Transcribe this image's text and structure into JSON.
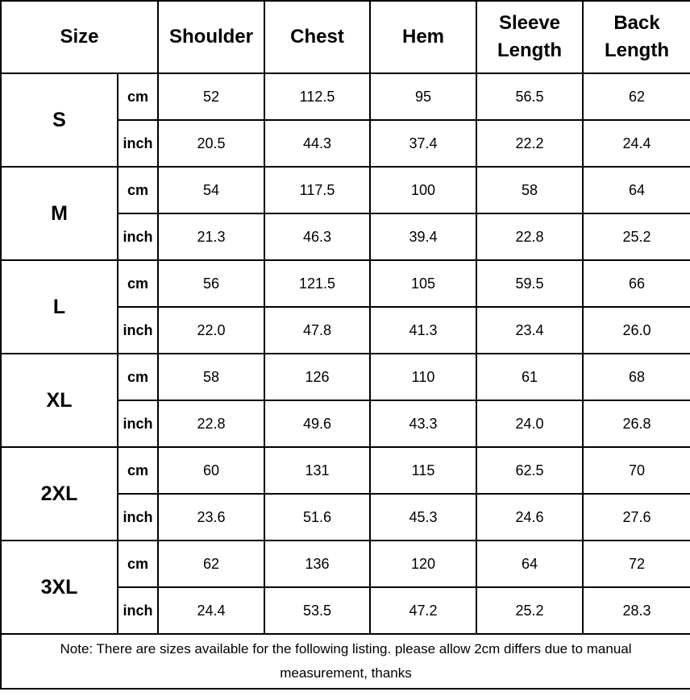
{
  "table": {
    "headers": {
      "size": "Size",
      "columns": [
        "Shoulder",
        "Chest",
        "Hem",
        "Sleeve Length",
        "Back Length"
      ]
    },
    "units": [
      "cm",
      "inch"
    ],
    "rows": [
      {
        "size": "S",
        "cm": [
          "52",
          "112.5",
          "95",
          "56.5",
          "62"
        ],
        "inch": [
          "20.5",
          "44.3",
          "37.4",
          "22.2",
          "24.4"
        ]
      },
      {
        "size": "M",
        "cm": [
          "54",
          "117.5",
          "100",
          "58",
          "64"
        ],
        "inch": [
          "21.3",
          "46.3",
          "39.4",
          "22.8",
          "25.2"
        ]
      },
      {
        "size": "L",
        "cm": [
          "56",
          "121.5",
          "105",
          "59.5",
          "66"
        ],
        "inch": [
          "22.0",
          "47.8",
          "41.3",
          "23.4",
          "26.0"
        ]
      },
      {
        "size": "XL",
        "cm": [
          "58",
          "126",
          "110",
          "61",
          "68"
        ],
        "inch": [
          "22.8",
          "49.6",
          "43.3",
          "24.0",
          "26.8"
        ]
      },
      {
        "size": "2XL",
        "cm": [
          "60",
          "131",
          "115",
          "62.5",
          "70"
        ],
        "inch": [
          "23.6",
          "51.6",
          "45.3",
          "24.6",
          "27.6"
        ]
      },
      {
        "size": "3XL",
        "cm": [
          "62",
          "136",
          "120",
          "64",
          "72"
        ],
        "inch": [
          "24.4",
          "53.5",
          "47.2",
          "25.2",
          "28.3"
        ]
      }
    ],
    "note": "Note: There are sizes available for the following listing. please allow 2cm differs due to manual measurement, thanks",
    "colors": {
      "border": "#000000",
      "text": "#000000",
      "background": "#ffffff"
    }
  }
}
